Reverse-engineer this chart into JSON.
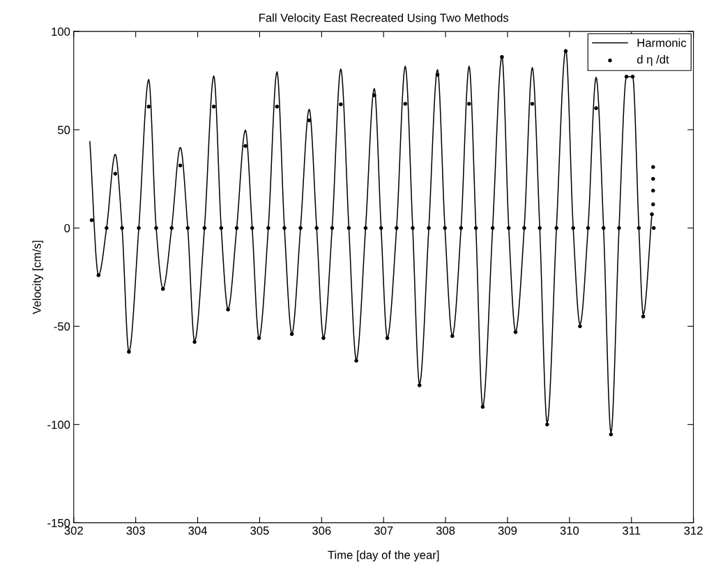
{
  "chart_data": {
    "type": "line",
    "title": "Fall Velocity East Recreated Using Two Methods",
    "xlabel": "Time [day of the year]",
    "ylabel": "Velocity [cm/s]",
    "xlim": [
      302,
      312
    ],
    "xticks": [
      302,
      303,
      304,
      305,
      306,
      307,
      308,
      309,
      310,
      311,
      312
    ],
    "ylim": [
      -150,
      100
    ],
    "yticks": [
      -150,
      -100,
      -50,
      0,
      50,
      100
    ],
    "grid": false,
    "legend": "top right",
    "series": [
      {
        "name": "Harmonic",
        "color": "#000000",
        "marker": "none",
        "line_style": "solid",
        "x": [
          302.26,
          302.4,
          302.53,
          302.67,
          302.78,
          302.89,
          303.05,
          303.21,
          303.33,
          303.44,
          303.58,
          303.72,
          303.84,
          303.95,
          304.11,
          304.26,
          304.38,
          304.49,
          304.63,
          304.77,
          304.88,
          304.99,
          305.14,
          305.28,
          305.4,
          305.52,
          305.66,
          305.8,
          305.92,
          306.03,
          306.17,
          306.31,
          306.44,
          306.56,
          306.71,
          306.85,
          306.96,
          307.06,
          307.21,
          307.35,
          307.47,
          307.58,
          307.73,
          307.87,
          307.99,
          308.11,
          308.25,
          308.38,
          308.49,
          308.6,
          308.76,
          308.91,
          309.02,
          309.13,
          309.27,
          309.4,
          309.52,
          309.64,
          309.79,
          309.94,
          310.06,
          310.17,
          310.3,
          310.43,
          310.55,
          310.67,
          310.8,
          310.92,
          311.02,
          311.12,
          311.19,
          311.33
        ],
        "values": [
          44,
          -24,
          0,
          37.5,
          0,
          -63,
          0,
          75.6,
          0,
          -30.7,
          0,
          41,
          0,
          -57.6,
          0,
          77.4,
          0,
          -41.3,
          0,
          49.8,
          0,
          -56,
          0,
          79.5,
          0,
          -53.7,
          0,
          60.4,
          0,
          -55.8,
          0,
          80.9,
          0,
          -67,
          0,
          71,
          0,
          -55.8,
          0,
          82.3,
          0,
          -79.5,
          0,
          80.6,
          0,
          -54.8,
          0,
          82.3,
          0,
          -90.8,
          0,
          87.3,
          0,
          -52.7,
          0,
          81.6,
          0,
          -99.3,
          0,
          90.8,
          0,
          -49,
          0,
          76.7,
          0,
          -104.2,
          0,
          77,
          77,
          0,
          -44,
          7
        ]
      },
      {
        "name": "d η /dt",
        "type": "scatter",
        "color": "#000000",
        "marker": "circle",
        "x": [
          302.29,
          302.4,
          302.53,
          302.67,
          302.78,
          302.89,
          303.05,
          303.21,
          303.33,
          303.44,
          303.58,
          303.72,
          303.84,
          303.95,
          304.11,
          304.26,
          304.38,
          304.49,
          304.63,
          304.77,
          304.88,
          304.99,
          305.14,
          305.28,
          305.4,
          305.52,
          305.66,
          305.8,
          305.92,
          306.03,
          306.17,
          306.31,
          306.44,
          306.56,
          306.71,
          306.85,
          306.96,
          307.06,
          307.21,
          307.35,
          307.47,
          307.58,
          307.73,
          307.87,
          307.99,
          308.11,
          308.25,
          308.38,
          308.49,
          308.6,
          308.76,
          308.91,
          309.02,
          309.13,
          309.27,
          309.4,
          309.52,
          309.64,
          309.79,
          309.94,
          310.06,
          310.17,
          310.3,
          310.43,
          310.55,
          310.67,
          310.8,
          310.92,
          311.02,
          311.12,
          311.19,
          311.33,
          311.35,
          311.35,
          311.35,
          311.35,
          311.36
        ],
        "values": [
          4,
          -24,
          0,
          27.6,
          0,
          -63,
          0,
          61.8,
          0,
          -31,
          0,
          31.8,
          0,
          -58,
          0,
          61.8,
          0,
          -41.5,
          0,
          41.7,
          0,
          -56,
          0,
          61.8,
          0,
          -54,
          0,
          54.8,
          0,
          -56,
          0,
          62.9,
          0,
          -67.5,
          0,
          67.5,
          0,
          -56,
          0,
          63.2,
          0,
          -80,
          0,
          78,
          0,
          -55,
          0,
          63.2,
          0,
          -91,
          0,
          87,
          0,
          -53,
          0,
          63.2,
          0,
          -100,
          0,
          90,
          0,
          -50,
          0,
          61,
          0,
          -105,
          0,
          77,
          77,
          0,
          -45,
          7,
          31,
          25,
          19,
          12,
          0
        ]
      }
    ]
  }
}
